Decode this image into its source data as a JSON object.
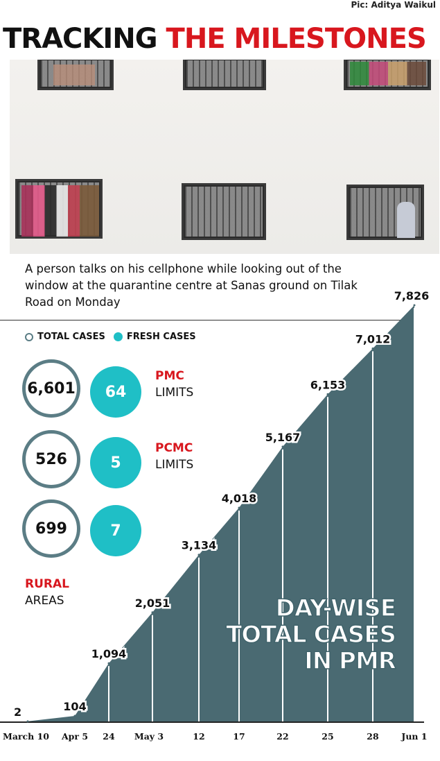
{
  "credit": "Pic: Aditya Waikul",
  "headline": {
    "part1": "TRACKING",
    "part2": "THE MILESTONES"
  },
  "photo_caption": "A person talks on his cellphone while looking out of the window at the quarantine centre at Sanas ground on Tilak Road on Monday",
  "legend": {
    "total": "TOTAL CASES",
    "fresh": "FRESH CASES"
  },
  "regions": [
    {
      "name": "PMC",
      "sub": "LIMITS",
      "total": "6,601",
      "fresh": "64"
    },
    {
      "name": "PCMC",
      "sub": "LIMITS",
      "total": "526",
      "fresh": "5"
    },
    {
      "name": "RURAL",
      "sub": "AREAS",
      "total": "699",
      "fresh": "7"
    }
  ],
  "colors": {
    "accent_red": "#d8171e",
    "fresh": "#1fbfc6",
    "area": "#4a6a72",
    "ring": "#5b7d85"
  },
  "chart_data": {
    "type": "area",
    "title": [
      "DAY-WISE",
      "TOTAL CASES",
      "IN PMR"
    ],
    "categories": [
      "March 10",
      "Apr 5",
      "24",
      "May 3",
      "12",
      "17",
      "22",
      "25",
      "28",
      "Jun 1"
    ],
    "values": [
      2,
      104,
      1094,
      2051,
      3134,
      4018,
      5167,
      6153,
      7012,
      7826
    ],
    "value_labels": [
      "2",
      "104",
      "1,094",
      "2,051",
      "3,134",
      "4,018",
      "5,167",
      "6,153",
      "7,012",
      "7,826"
    ],
    "ylim": [
      0,
      7826
    ],
    "grid": false
  }
}
